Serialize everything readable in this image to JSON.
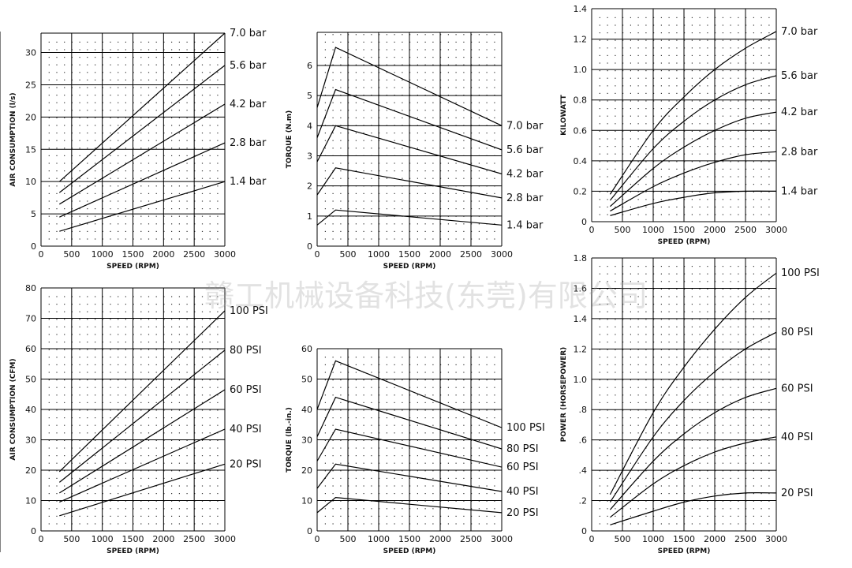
{
  "watermark": "赣工机械设备科技(东莞)有限公司",
  "chart_data": [
    {
      "id": "air-l",
      "type": "line",
      "xlabel": "SPEED (RPM)",
      "ylabel": "AIR CONSUMPTION (l/s)",
      "xlim": [
        0,
        3000
      ],
      "ylim": [
        0,
        33
      ],
      "xticks": [
        "0",
        "500",
        "1000",
        "1500",
        "2000",
        "2500",
        "3000"
      ],
      "yticks": [
        {
          "v": 0,
          "t": "0"
        },
        {
          "v": 5,
          "t": "5"
        },
        {
          "v": 10,
          "t": "10"
        },
        {
          "v": 15,
          "t": "15"
        },
        {
          "v": 20,
          "t": "20"
        },
        {
          "v": 25,
          "t": "25"
        },
        {
          "v": 30,
          "t": "30"
        }
      ],
      "grid": true,
      "series": [
        {
          "name": "7.0 bar",
          "points": [
            [
              300,
              10
            ],
            [
              3000,
              33
            ]
          ]
        },
        {
          "name": "5.6 bar",
          "points": [
            [
              300,
              8.3
            ],
            [
              3000,
              28
            ]
          ]
        },
        {
          "name": "4.2 bar",
          "points": [
            [
              300,
              6.5
            ],
            [
              3000,
              22
            ]
          ]
        },
        {
          "name": "2.8 bar",
          "points": [
            [
              300,
              4.5
            ],
            [
              3000,
              16
            ]
          ]
        },
        {
          "name": "1.4 bar",
          "points": [
            [
              300,
              2.3
            ],
            [
              3000,
              10
            ]
          ]
        }
      ]
    },
    {
      "id": "torque-nm",
      "type": "line",
      "xlabel": "SPEED (RPM)",
      "ylabel": "TORQUE (N.m)",
      "xlim": [
        0,
        3000
      ],
      "ylim": [
        0,
        7.1
      ],
      "xticks": [
        "0",
        "500",
        "1000",
        "1500",
        "2000",
        "2500",
        "3000"
      ],
      "yticks": [
        {
          "v": 0,
          "t": "0"
        },
        {
          "v": 1,
          "t": "1"
        },
        {
          "v": 2,
          "t": "2"
        },
        {
          "v": 3,
          "t": "3"
        },
        {
          "v": 4,
          "t": "4"
        },
        {
          "v": 5,
          "t": "5"
        },
        {
          "v": 6,
          "t": "6"
        }
      ],
      "grid": true,
      "series": [
        {
          "name": "7.0 bar",
          "points": [
            [
              0,
              4.6
            ],
            [
              300,
              6.6
            ],
            [
              3000,
              4.0
            ]
          ]
        },
        {
          "name": "5.6 bar",
          "points": [
            [
              0,
              3.6
            ],
            [
              300,
              5.2
            ],
            [
              3000,
              3.2
            ]
          ]
        },
        {
          "name": "4.2 bar",
          "points": [
            [
              0,
              2.8
            ],
            [
              300,
              4.0
            ],
            [
              3000,
              2.4
            ]
          ]
        },
        {
          "name": "2.8 bar",
          "points": [
            [
              0,
              1.7
            ],
            [
              300,
              2.6
            ],
            [
              3000,
              1.6
            ]
          ]
        },
        {
          "name": "1.4 bar",
          "points": [
            [
              0,
              0.7
            ],
            [
              300,
              1.2
            ],
            [
              3000,
              0.7
            ]
          ]
        }
      ]
    },
    {
      "id": "power-kw",
      "type": "line",
      "xlabel": "SPEED (RPM)",
      "ylabel": "KILOWATT",
      "xlim": [
        0,
        3000
      ],
      "ylim": [
        0,
        1.4
      ],
      "xticks": [
        "0",
        "500",
        "1000",
        "1500",
        "2000",
        "2500",
        "3000"
      ],
      "yticks": [
        {
          "v": 0,
          "t": "0"
        },
        {
          "v": 0.2,
          "t": "0.2"
        },
        {
          "v": 0.4,
          "t": "0.4"
        },
        {
          "v": 0.6,
          "t": "0.6"
        },
        {
          "v": 0.8,
          "t": "0.8"
        },
        {
          "v": 1.0,
          "t": "1.0"
        },
        {
          "v": 1.2,
          "t": "1.2"
        },
        {
          "v": 1.4,
          "t": "1.4"
        }
      ],
      "grid": true,
      "series": [
        {
          "name": "7.0 bar",
          "points": [
            [
              300,
              0.18
            ],
            [
              1000,
              0.6
            ],
            [
              1500,
              0.82
            ],
            [
              2000,
              1.0
            ],
            [
              2500,
              1.14
            ],
            [
              3000,
              1.25
            ]
          ]
        },
        {
          "name": "5.6 bar",
          "points": [
            [
              300,
              0.14
            ],
            [
              1000,
              0.48
            ],
            [
              1500,
              0.66
            ],
            [
              2000,
              0.8
            ],
            [
              2500,
              0.9
            ],
            [
              3000,
              0.96
            ]
          ]
        },
        {
          "name": "4.2 bar",
          "points": [
            [
              300,
              0.1
            ],
            [
              1000,
              0.35
            ],
            [
              1500,
              0.49
            ],
            [
              2000,
              0.6
            ],
            [
              2500,
              0.68
            ],
            [
              3000,
              0.72
            ]
          ]
        },
        {
          "name": "2.8 bar",
          "points": [
            [
              300,
              0.07
            ],
            [
              1000,
              0.23
            ],
            [
              1500,
              0.32
            ],
            [
              2000,
              0.39
            ],
            [
              2500,
              0.44
            ],
            [
              3000,
              0.46
            ]
          ]
        },
        {
          "name": "1.4 bar",
          "points": [
            [
              300,
              0.04
            ],
            [
              1000,
              0.12
            ],
            [
              1500,
              0.16
            ],
            [
              2000,
              0.19
            ],
            [
              2500,
              0.2
            ],
            [
              3000,
              0.2
            ]
          ]
        }
      ]
    },
    {
      "id": "air-cfm",
      "type": "line",
      "xlabel": "SPEED (RPM)",
      "ylabel": "AIR CONSUMPTION (CFM)",
      "xlim": [
        0,
        3000
      ],
      "ylim": [
        0,
        80
      ],
      "xticks": [
        "0",
        "500",
        "1000",
        "1500",
        "2000",
        "2500",
        "3000"
      ],
      "yticks": [
        {
          "v": 0,
          "t": "0"
        },
        {
          "v": 10,
          "t": "10"
        },
        {
          "v": 20,
          "t": "20"
        },
        {
          "v": 30,
          "t": "30"
        },
        {
          "v": 40,
          "t": "40"
        },
        {
          "v": 50,
          "t": "50"
        },
        {
          "v": 60,
          "t": "60"
        },
        {
          "v": 70,
          "t": "70"
        },
        {
          "v": 80,
          "t": "80"
        }
      ],
      "grid": true,
      "series": [
        {
          "name": "100 PSI",
          "points": [
            [
              300,
              19.5
            ],
            [
              3000,
              72.5
            ]
          ]
        },
        {
          "name": "80 PSI",
          "points": [
            [
              300,
              16
            ],
            [
              3000,
              59.5
            ]
          ]
        },
        {
          "name": "60 PSI",
          "points": [
            [
              300,
              12.5
            ],
            [
              3000,
              46.5
            ]
          ]
        },
        {
          "name": "40 PSI",
          "points": [
            [
              300,
              9.5
            ],
            [
              3000,
              33.5
            ]
          ]
        },
        {
          "name": "20 PSI",
          "points": [
            [
              300,
              5
            ],
            [
              3000,
              22
            ]
          ]
        }
      ]
    },
    {
      "id": "torque-lbin",
      "type": "line",
      "xlabel": "SPEED (RPM)",
      "ylabel": "TORQUE (lb.-in.)",
      "xlim": [
        0,
        3000
      ],
      "ylim": [
        0,
        60
      ],
      "xticks": [
        "0",
        "500",
        "1000",
        "1500",
        "2000",
        "2500",
        "3000"
      ],
      "yticks": [
        {
          "v": 0,
          "t": "0"
        },
        {
          "v": 10,
          "t": "10"
        },
        {
          "v": 20,
          "t": "20"
        },
        {
          "v": 30,
          "t": "30"
        },
        {
          "v": 40,
          "t": "40"
        },
        {
          "v": 50,
          "t": "50"
        },
        {
          "v": 60,
          "t": "60"
        }
      ],
      "grid": true,
      "series": [
        {
          "name": "100 PSI",
          "points": [
            [
              0,
              40
            ],
            [
              300,
              56
            ],
            [
              3000,
              34
            ]
          ]
        },
        {
          "name": "80 PSI",
          "points": [
            [
              0,
              31
            ],
            [
              300,
              44
            ],
            [
              3000,
              27
            ]
          ]
        },
        {
          "name": "60 PSI",
          "points": [
            [
              0,
              23
            ],
            [
              300,
              33.5
            ],
            [
              3000,
              21
            ]
          ]
        },
        {
          "name": "40 PSI",
          "points": [
            [
              0,
              14
            ],
            [
              300,
              22
            ],
            [
              3000,
              13
            ]
          ]
        },
        {
          "name": "20 PSI",
          "points": [
            [
              0,
              6
            ],
            [
              300,
              11
            ],
            [
              3000,
              6
            ]
          ]
        }
      ]
    },
    {
      "id": "power-hp",
      "type": "line",
      "xlabel": "SPEED (RPM)",
      "ylabel": "POWER (HORSEPOWER)",
      "xlim": [
        0,
        3000
      ],
      "ylim": [
        0,
        1.8
      ],
      "xticks": [
        "0",
        "500",
        "1000",
        "1500",
        "2000",
        "2500",
        "3000"
      ],
      "yticks": [
        {
          "v": 0,
          "t": "0"
        },
        {
          "v": 0.2,
          "t": ".2"
        },
        {
          "v": 0.4,
          "t": ".4"
        },
        {
          "v": 0.6,
          "t": ".6"
        },
        {
          "v": 0.8,
          "t": ".8"
        },
        {
          "v": 1.0,
          "t": "1.0"
        },
        {
          "v": 1.2,
          "t": "1.2"
        },
        {
          "v": 1.4,
          "t": "1.4"
        },
        {
          "v": 1.6,
          "t": "1.6"
        },
        {
          "v": 1.8,
          "t": "1.8"
        }
      ],
      "grid": true,
      "series": [
        {
          "name": "100 PSI",
          "points": [
            [
              300,
              0.24
            ],
            [
              1000,
              0.78
            ],
            [
              1500,
              1.08
            ],
            [
              2000,
              1.33
            ],
            [
              2500,
              1.54
            ],
            [
              3000,
              1.7
            ]
          ]
        },
        {
          "name": "80 PSI",
          "points": [
            [
              300,
              0.19
            ],
            [
              1000,
              0.62
            ],
            [
              1500,
              0.86
            ],
            [
              2000,
              1.05
            ],
            [
              2500,
              1.2
            ],
            [
              3000,
              1.31
            ]
          ]
        },
        {
          "name": "60 PSI",
          "points": [
            [
              300,
              0.14
            ],
            [
              1000,
              0.46
            ],
            [
              1500,
              0.64
            ],
            [
              2000,
              0.78
            ],
            [
              2500,
              0.88
            ],
            [
              3000,
              0.94
            ]
          ]
        },
        {
          "name": "40 PSI",
          "points": [
            [
              300,
              0.09
            ],
            [
              1000,
              0.31
            ],
            [
              1500,
              0.43
            ],
            [
              2000,
              0.52
            ],
            [
              2500,
              0.58
            ],
            [
              3000,
              0.62
            ]
          ]
        },
        {
          "name": "20 PSI",
          "points": [
            [
              300,
              0.04
            ],
            [
              1000,
              0.13
            ],
            [
              1500,
              0.19
            ],
            [
              2000,
              0.23
            ],
            [
              2500,
              0.25
            ],
            [
              3000,
              0.25
            ]
          ]
        }
      ]
    }
  ]
}
